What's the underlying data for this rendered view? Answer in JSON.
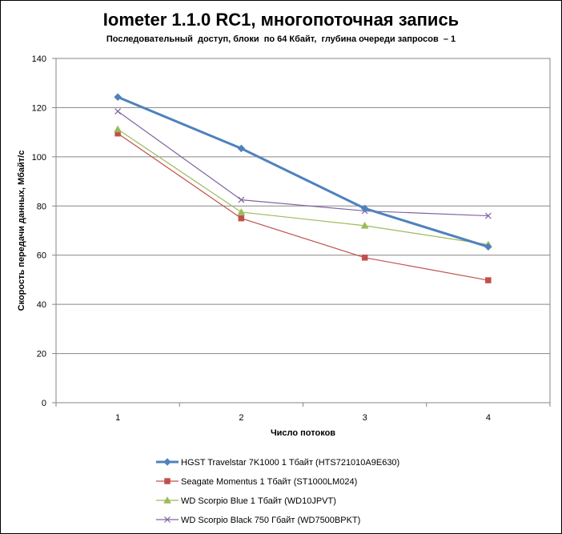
{
  "chart_data": {
    "type": "line",
    "title": "Iometer 1.1.0 RC1, многопоточная запись",
    "subtitle": "Последовательный  доступ, блоки  по 64 Кбайт,  глубина очереди запросов  – 1",
    "xlabel": "Число  потоков",
    "ylabel": "Скорость  передачи данных, Мбайт/с",
    "categories": [
      "1",
      "2",
      "3",
      "4"
    ],
    "ylim": [
      0,
      140
    ],
    "yticks": [
      "0",
      "20",
      "40",
      "60",
      "80",
      "100",
      "120",
      "140"
    ],
    "grid": true,
    "legend_position": "bottom",
    "series": [
      {
        "name": "HGST Travelstar 7K1000 1 Тбайт (HTS721010A9E630)",
        "values": [
          124.3,
          103.4,
          79.0,
          63.4
        ],
        "color": "#4F81BD",
        "marker": "diamond"
      },
      {
        "name": "Seagate  Momentus  1 Тбайт  (ST1000LM024)",
        "values": [
          109.5,
          75.0,
          59.0,
          49.8
        ],
        "color": "#C0504D",
        "marker": "square"
      },
      {
        "name": "WD Scorpio Blue 1 Тбайт (WD10JPVT)",
        "values": [
          111.2,
          77.5,
          72.0,
          64.3
        ],
        "color": "#9BBB59",
        "marker": "triangle"
      },
      {
        "name": "WD Scorpio Black 750 Гбайт (WD7500BPKT)",
        "values": [
          118.5,
          82.5,
          78.0,
          76.0
        ],
        "color": "#8064A2",
        "marker": "x"
      }
    ]
  }
}
